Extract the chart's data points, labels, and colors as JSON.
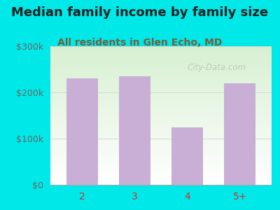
{
  "categories": [
    "2",
    "3",
    "4",
    "5+"
  ],
  "values": [
    230000,
    235000,
    125000,
    220000
  ],
  "bar_color": "#c9aed6",
  "title": "Median family income by family size",
  "subtitle": "All residents in Glen Echo, MD",
  "title_color": "#222222",
  "subtitle_color": "#7a5c3a",
  "bg_color": "#00e8e8",
  "plot_bg_top": "#d8f0d0",
  "plot_bg_bottom": "#ffffff",
  "ylim": [
    0,
    300000
  ],
  "yticks": [
    0,
    100000,
    200000,
    300000
  ],
  "ytick_labels": [
    "$0",
    "$100k",
    "$200k",
    "$300k"
  ],
  "xtick_color": "#cc3333",
  "ytick_color": "#666666",
  "watermark": "City-Data.com",
  "title_fontsize": 13,
  "subtitle_fontsize": 10
}
